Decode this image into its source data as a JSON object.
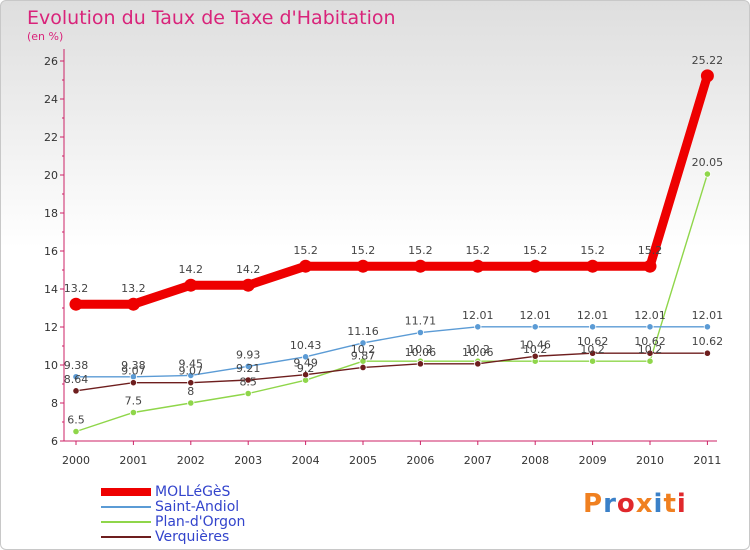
{
  "title": "Evolution du Taux de Taxe d'Habitation",
  "subtitle": "(en %)",
  "logo": {
    "text": "Proxiti",
    "colors": [
      "#f08020",
      "#3a80c8",
      "#e0282c",
      "#f08020",
      "#3a80c8",
      "#f08020",
      "#e0282c"
    ]
  },
  "chart_data": {
    "type": "line",
    "title": "Evolution du Taux de Taxe d'Habitation",
    "ylabel": "(en %)",
    "xlabel": "",
    "ylim": [
      6,
      26
    ],
    "yticks": [
      "6",
      "8",
      "10",
      "12",
      "14",
      "16",
      "18",
      "20",
      "22",
      "24",
      "26"
    ],
    "categories": [
      "2000",
      "2001",
      "2002",
      "2003",
      "2004",
      "2005",
      "2006",
      "2007",
      "2008",
      "2009",
      "2010",
      "2011"
    ],
    "grid": false,
    "legend_position": "bottom-left",
    "series": [
      {
        "name": "MOLLéGèS",
        "color": "#ee0000",
        "values": [
          13.2,
          13.2,
          14.2,
          14.2,
          15.2,
          15.2,
          15.2,
          15.2,
          15.2,
          15.2,
          15.2,
          25.22
        ],
        "labels": [
          "13.2",
          "13.2",
          "14.2",
          "14.2",
          "15.2",
          "15.2",
          "15.2",
          "15.2",
          "15.2",
          "15.2",
          "15.2",
          "25.22"
        ]
      },
      {
        "name": "Saint-Andiol",
        "color": "#5b9bd5",
        "values": [
          9.38,
          9.38,
          9.45,
          9.93,
          10.43,
          11.16,
          11.71,
          12.01,
          12.01,
          12.01,
          12.01,
          12.01
        ],
        "labels": [
          "9.38",
          "9.38",
          "9.45",
          "9.93",
          "10.43",
          "11.16",
          "11.71",
          "12.01",
          "12.01",
          "12.01",
          "12.01",
          "12.01"
        ]
      },
      {
        "name": "Plan-d'Orgon",
        "color": "#8fd64a",
        "values": [
          6.5,
          7.5,
          8,
          8.5,
          9.2,
          10.2,
          10.2,
          10.2,
          10.2,
          10.2,
          10.2,
          20.05
        ],
        "labels": [
          "6.5",
          "7.5",
          "8",
          "8.5",
          "9.2",
          "10.2",
          "10.2",
          "10.2",
          "10.2",
          "10.2",
          "10.2",
          "20.05"
        ]
      },
      {
        "name": "Verquières",
        "color": "#6e1e1e",
        "values": [
          8.64,
          9.07,
          9.07,
          9.21,
          9.49,
          9.87,
          10.06,
          10.06,
          10.46,
          10.62,
          10.62,
          10.62
        ],
        "labels": [
          "8.64",
          "9.07",
          "9.07",
          "9.21",
          "9.49",
          "9.87",
          "10.06",
          "10.06",
          "10.46",
          "10.62",
          "10.62",
          "10.62"
        ]
      }
    ]
  }
}
